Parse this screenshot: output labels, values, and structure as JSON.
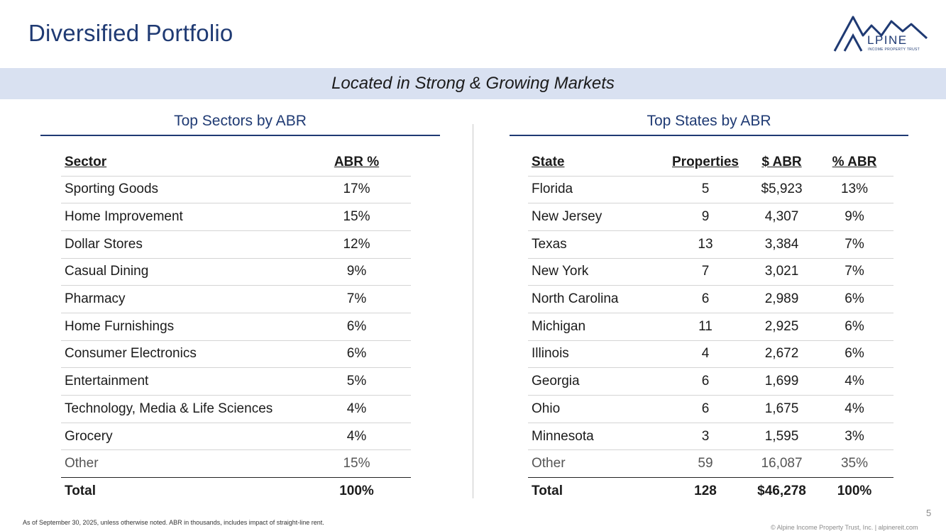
{
  "header": {
    "title": "Diversified Portfolio",
    "logo": {
      "text": "LPINE",
      "subtext": "INCOME PROPERTY TRUST",
      "color": "#1f3a73"
    }
  },
  "banner": {
    "text": "Located in Strong & Growing Markets"
  },
  "sectors": {
    "heading": "Top Sectors by ABR",
    "columns": [
      "Sector",
      "ABR %"
    ],
    "rows": [
      [
        "Sporting Goods",
        "17%"
      ],
      [
        "Home Improvement",
        "15%"
      ],
      [
        "Dollar Stores",
        "12%"
      ],
      [
        "Casual Dining",
        "9%"
      ],
      [
        "Pharmacy",
        "7%"
      ],
      [
        "Home Furnishings",
        "6%"
      ],
      [
        "Consumer Electronics",
        "6%"
      ],
      [
        "Entertainment",
        "5%"
      ],
      [
        "Technology, Media & Life Sciences",
        "4%"
      ],
      [
        "Grocery",
        "4%"
      ]
    ],
    "other": [
      "Other",
      "15%"
    ],
    "total": [
      "Total",
      "100%"
    ]
  },
  "states": {
    "heading": "Top States by ABR",
    "columns": [
      "State",
      "Properties",
      "$ ABR",
      "% ABR"
    ],
    "rows": [
      [
        "Florida",
        "5",
        "$5,923",
        "13%"
      ],
      [
        "New Jersey",
        "9",
        "4,307",
        "9%"
      ],
      [
        "Texas",
        "13",
        "3,384",
        "7%"
      ],
      [
        "New York",
        "7",
        "3,021",
        "7%"
      ],
      [
        "North Carolina",
        "6",
        "2,989",
        "6%"
      ],
      [
        "Michigan",
        "11",
        "2,925",
        "6%"
      ],
      [
        "Illinois",
        "4",
        "2,672",
        "6%"
      ],
      [
        "Georgia",
        "6",
        "1,699",
        "4%"
      ],
      [
        "Ohio",
        "6",
        "1,675",
        "4%"
      ],
      [
        "Minnesota",
        "3",
        "1,595",
        "3%"
      ]
    ],
    "other": [
      "Other",
      "59",
      "16,087",
      "35%"
    ],
    "total": [
      "Total",
      "128",
      "$46,278",
      "100%"
    ]
  },
  "footer": {
    "note": "As of September 30, 2025, unless otherwise noted. ABR in thousands, includes impact of straight-line rent.",
    "page": "5",
    "copyright": "© Alpine Income Property Trust, Inc.  |  alpinereit.com"
  }
}
